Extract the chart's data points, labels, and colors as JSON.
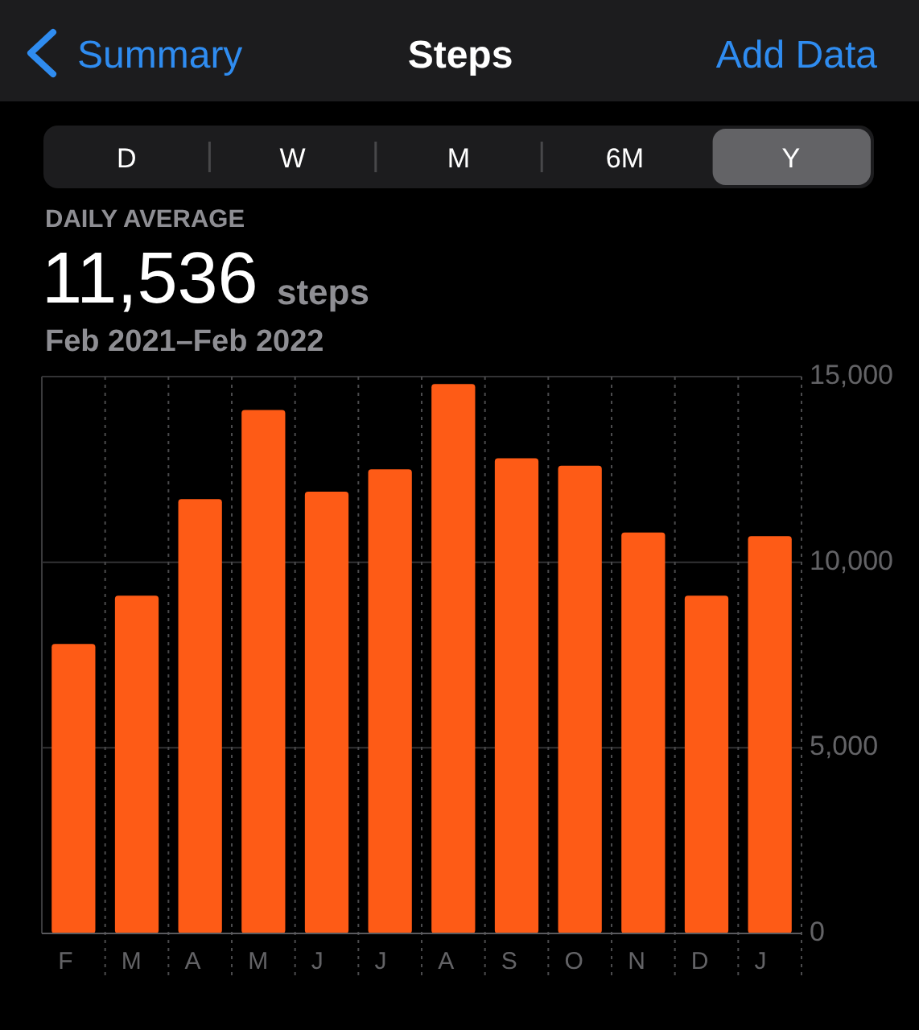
{
  "chart_data": {
    "type": "bar",
    "title": "Steps",
    "subtitle": "Feb 2021–Feb 2022",
    "annotations": [
      "Summary",
      "Add Data",
      "D",
      "W",
      "M",
      "6M",
      "Y",
      "DAILY AVERAGE",
      "11,536",
      "steps"
    ],
    "categories": [
      "F",
      "M",
      "A",
      "M",
      "J",
      "J",
      "A",
      "S",
      "O",
      "N",
      "D",
      "J"
    ],
    "values": [
      7800,
      9100,
      11700,
      14100,
      11900,
      12500,
      14800,
      12800,
      12600,
      10800,
      9100,
      10700
    ],
    "color": "#fe5b16",
    "ylim": [
      0,
      15000
    ],
    "yticks": [
      0,
      {
        "value": 5000,
        "label": "5,000"
      },
      {
        "value": 10000,
        "label": "10,000"
      },
      {
        "value": 15000,
        "label": "15,000"
      }
    ],
    "grid": true
  }
}
